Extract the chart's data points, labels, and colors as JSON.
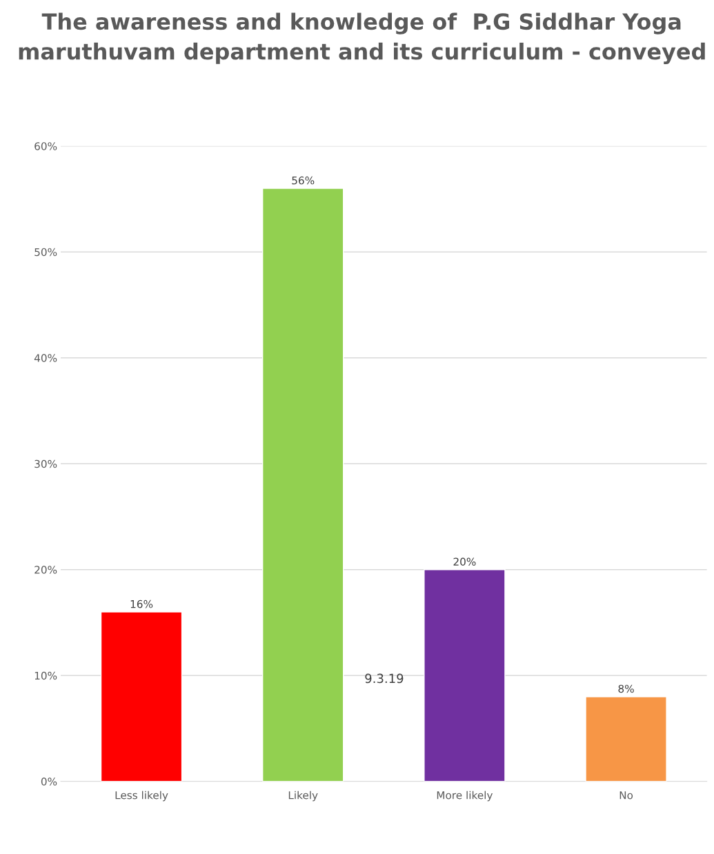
{
  "chart_data": {
    "type": "bar",
    "title": "The awareness and knowledge of  P.G Siddhar Yoga maruthuvam department and its curriculum - conveyed",
    "categories": [
      "Less likely",
      "Likely",
      "More likely",
      "No"
    ],
    "values": [
      16,
      56,
      20,
      8
    ],
    "colors": [
      "#ff0000",
      "#92d050",
      "#7030a0",
      "#f79646"
    ],
    "value_labels": [
      "16%",
      "56%",
      "20%",
      "8%"
    ],
    "ylim": [
      0,
      60
    ],
    "yticks": [
      {
        "value": 0,
        "label": "0%"
      },
      {
        "value": 10,
        "label": "10%"
      },
      {
        "value": 20,
        "label": "20%"
      },
      {
        "value": 30,
        "label": "30%"
      },
      {
        "value": 40,
        "label": "40%"
      },
      {
        "value": 50,
        "label": "50%"
      },
      {
        "value": 60,
        "label": "60%"
      }
    ],
    "grid": "y",
    "annotations": [
      "9.3.19"
    ]
  }
}
